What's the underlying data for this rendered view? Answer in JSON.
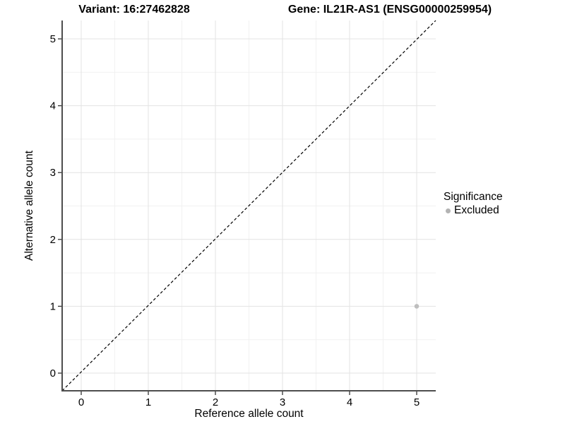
{
  "header": {
    "variant_title": "Variant: 16:27462828",
    "gene_title": "Gene: IL21R-AS1 (ENSG00000259954)"
  },
  "chart_data": {
    "type": "scatter",
    "xlabel": "Reference allele count",
    "ylabel": "Alternative allele count",
    "xticks": [
      0,
      1,
      2,
      3,
      4,
      5
    ],
    "yticks": [
      0,
      1,
      2,
      3,
      4,
      5
    ],
    "xlim": [
      -0.28,
      5.28
    ],
    "ylim": [
      -0.26,
      5.28
    ],
    "grid": true,
    "minor_grid": true,
    "identity_line": {
      "type": "dashed",
      "from": [
        0,
        0
      ],
      "slope": 1
    },
    "series": [
      {
        "name": "Excluded",
        "points": [
          {
            "x": 5,
            "y": 1
          }
        ]
      }
    ],
    "legend": {
      "title": "Significance",
      "position": "right",
      "entries": [
        {
          "label": "Excluded",
          "color": "#b3b3b3"
        }
      ]
    },
    "style": {
      "point_color": "#bebebe",
      "grid_major_color": "#e3e3e3",
      "grid_minor_color": "#f1f1f1",
      "axis_color": "#4d4d4d",
      "tick_color": "#333333",
      "identity_line_color": "#000000",
      "text_color": "#000000"
    }
  }
}
